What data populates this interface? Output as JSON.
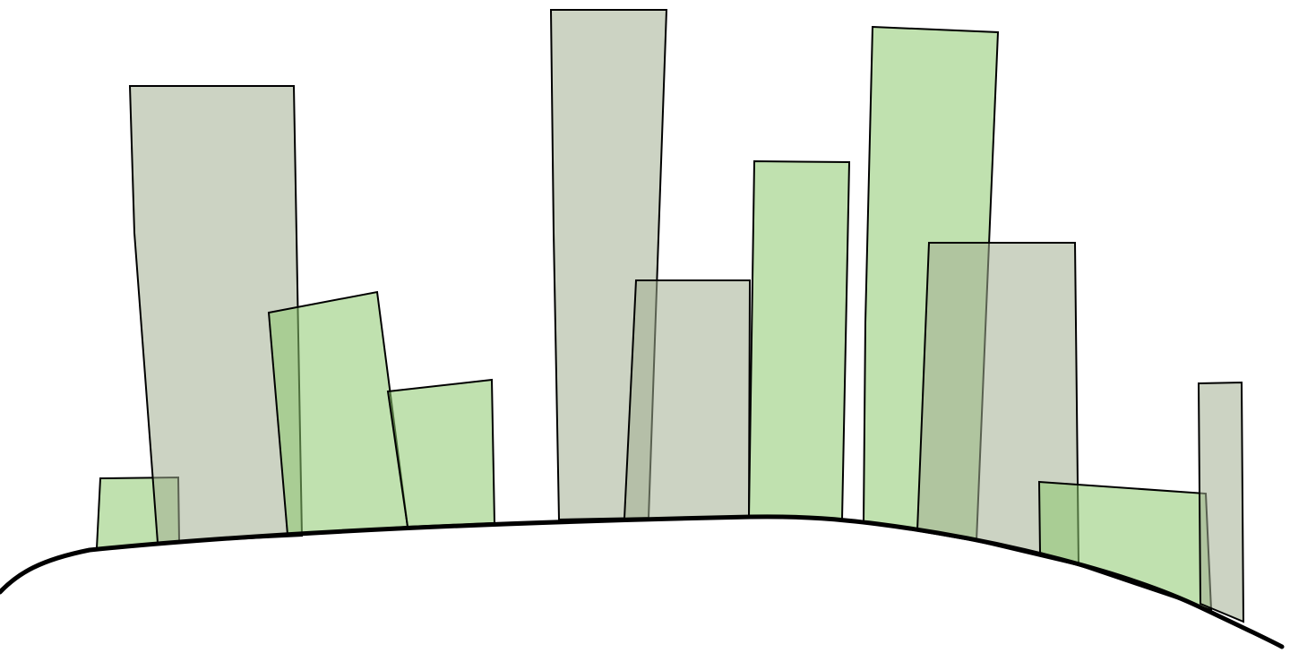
{
  "scene": {
    "description_free": true,
    "colors": {
      "green_building": "#8cc86e",
      "gray_building": "#a2ae92",
      "outline": "#000000",
      "background": "#ffffff"
    },
    "buildings": [
      {
        "id": "b1",
        "tone": "green"
      },
      {
        "id": "b2",
        "tone": "gray"
      },
      {
        "id": "b3",
        "tone": "green"
      },
      {
        "id": "b4",
        "tone": "green"
      },
      {
        "id": "b5",
        "tone": "gray"
      },
      {
        "id": "b6",
        "tone": "gray"
      },
      {
        "id": "b7",
        "tone": "green"
      },
      {
        "id": "b8",
        "tone": "green"
      },
      {
        "id": "b9",
        "tone": "gray"
      },
      {
        "id": "b10",
        "tone": "green"
      },
      {
        "id": "b11",
        "tone": "gray"
      }
    ]
  }
}
